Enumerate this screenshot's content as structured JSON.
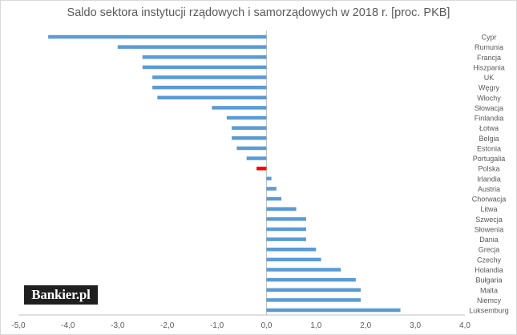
{
  "chart_data": {
    "type": "bar",
    "orientation": "horizontal",
    "title": "Saldo sektora instytucji rządowych i samorządowych w 2018 r. [proc. PKB]",
    "xlim": [
      -5.0,
      4.0
    ],
    "x_ticks": [
      "-5,0",
      "-4,0",
      "-3,0",
      "-2,0",
      "-1,0",
      "0,0",
      "1,0",
      "2,0",
      "3,0",
      "4,0"
    ],
    "grid": false,
    "legend": "none",
    "colors": {
      "bar": "#5b9bd5",
      "highlight": "#ff0000",
      "axis": "#bfbfbf",
      "text": "#595959"
    },
    "highlight_category": "Polska",
    "categories": [
      "Cypr",
      "Rumunia",
      "Francja",
      "Hiszpania",
      "UK",
      "Węgry",
      "Włochy",
      "Słowacja",
      "Finlandia",
      "Łotwa",
      "Belgia",
      "Estonia",
      "Portugalia",
      "Polska",
      "Irlandia",
      "Austria",
      "Chorwacja",
      "Litwa",
      "Szwecja",
      "Słowenia",
      "Dania",
      "Grecja",
      "Czechy",
      "Holandia",
      "Bułgaria",
      "Malta",
      "Niemcy",
      "Luksemburg"
    ],
    "values": [
      -4.4,
      -3.0,
      -2.5,
      -2.5,
      -2.3,
      -2.3,
      -2.2,
      -1.1,
      -0.8,
      -0.7,
      -0.7,
      -0.6,
      -0.4,
      -0.2,
      0.1,
      0.2,
      0.3,
      0.6,
      0.8,
      0.8,
      0.8,
      1.0,
      1.1,
      1.5,
      1.8,
      1.9,
      1.9,
      2.7
    ]
  },
  "logo": {
    "text": "Bankier.pl"
  }
}
